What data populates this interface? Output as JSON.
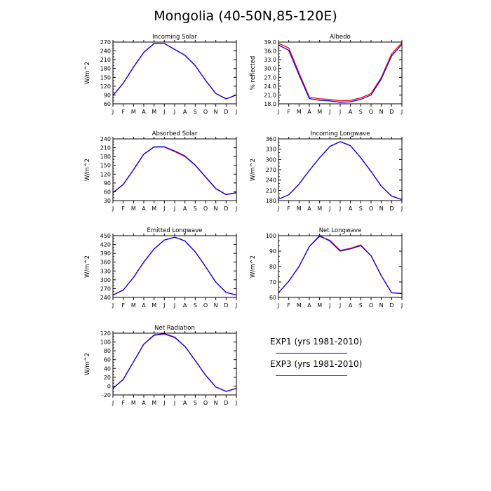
{
  "title": "Mongolia (40-50N,85-120E)",
  "colors": {
    "exp1": "#0000ff",
    "exp3": "#ff0000"
  },
  "legend": [
    {
      "label": "EXP1 (yrs 1981-2010)",
      "color": "#0000ff"
    },
    {
      "label": "EXP3 (yrs 1981-2010)",
      "color": "#ff0000"
    }
  ],
  "chart_data": [
    {
      "type": "line",
      "title": "Incoming Solar",
      "ylabel": "W/m^2",
      "categories": [
        "J",
        "F",
        "M",
        "A",
        "M",
        "J",
        "J",
        "A",
        "S",
        "O",
        "N",
        "D",
        "J"
      ],
      "ylim": [
        60,
        270
      ],
      "yticks": [
        60,
        90,
        120,
        150,
        180,
        210,
        240,
        270
      ],
      "ytick_labels": [
        "60",
        "90",
        "120",
        "150",
        "180",
        "210",
        "240",
        "270"
      ],
      "series": [
        {
          "values": [
            88,
            130,
            185,
            235,
            265,
            265,
            245,
            225,
            190,
            140,
            95,
            77,
            90
          ]
        },
        {
          "values": [
            88,
            130,
            185,
            235,
            265,
            265,
            245,
            225,
            190,
            140,
            95,
            77,
            90
          ]
        }
      ]
    },
    {
      "type": "line",
      "title": "Albedo",
      "ylabel": "% reflected",
      "categories": [
        "J",
        "F",
        "M",
        "A",
        "M",
        "J",
        "J",
        "A",
        "S",
        "O",
        "N",
        "D",
        "J"
      ],
      "ylim": [
        18,
        39
      ],
      "yticks": [
        18,
        21,
        24,
        27,
        30,
        33,
        36,
        39
      ],
      "ytick_labels": [
        "18.0",
        "21.0",
        "24.0",
        "27.0",
        "30.0",
        "33.0",
        "36.0",
        "39.0"
      ],
      "series": [
        {
          "values": [
            38.6,
            37.0,
            28.5,
            20.3,
            19.7,
            19.5,
            19.0,
            19.2,
            20.0,
            21.5,
            27.0,
            35.0,
            38.8
          ]
        },
        {
          "values": [
            38.0,
            36.2,
            27.8,
            19.8,
            19.2,
            19.0,
            18.5,
            18.7,
            19.5,
            21.0,
            26.5,
            34.3,
            38.2
          ]
        }
      ]
    },
    {
      "type": "line",
      "title": "Absorbed Solar",
      "ylabel": "W/m^2",
      "categories": [
        "J",
        "F",
        "M",
        "A",
        "M",
        "J",
        "J",
        "A",
        "S",
        "O",
        "N",
        "D",
        "J"
      ],
      "ylim": [
        30,
        240
      ],
      "yticks": [
        30,
        60,
        90,
        120,
        150,
        180,
        210,
        240
      ],
      "ytick_labels": [
        "30",
        "60",
        "90",
        "120",
        "150",
        "180",
        "210",
        "240"
      ],
      "series": [
        {
          "values": [
            57,
            85,
            135,
            188,
            212,
            212,
            197,
            180,
            150,
            110,
            70,
            50,
            57
          ]
        },
        {
          "values": [
            57,
            85,
            135,
            188,
            213,
            213,
            199,
            182,
            151,
            111,
            71,
            51,
            57
          ]
        }
      ]
    },
    {
      "type": "line",
      "title": "Incoming Longwave",
      "ylabel": "W/m^2",
      "categories": [
        "J",
        "F",
        "M",
        "A",
        "M",
        "J",
        "J",
        "A",
        "S",
        "O",
        "N",
        "D",
        "J"
      ],
      "ylim": [
        180,
        360
      ],
      "yticks": [
        180,
        210,
        240,
        270,
        300,
        330,
        360
      ],
      "ytick_labels": [
        "180",
        "210",
        "240",
        "270",
        "300",
        "330",
        "360"
      ],
      "series": [
        {
          "values": [
            184,
            197,
            228,
            268,
            305,
            338,
            352,
            340,
            305,
            265,
            222,
            193,
            183
          ]
        },
        {
          "values": [
            184,
            197,
            228,
            268,
            305,
            338,
            352,
            340,
            305,
            265,
            222,
            193,
            183
          ]
        }
      ]
    },
    {
      "type": "line",
      "title": "Emitted Longwave",
      "ylabel": "W/m^2",
      "categories": [
        "J",
        "F",
        "M",
        "A",
        "M",
        "J",
        "J",
        "A",
        "S",
        "O",
        "N",
        "D",
        "J"
      ],
      "ylim": [
        240,
        450
      ],
      "yticks": [
        240,
        270,
        300,
        330,
        360,
        390,
        420,
        450
      ],
      "ytick_labels": [
        "240",
        "270",
        "300",
        "330",
        "360",
        "390",
        "420",
        "450"
      ],
      "series": [
        {
          "values": [
            248,
            265,
            308,
            360,
            405,
            435,
            445,
            432,
            395,
            345,
            292,
            257,
            248
          ]
        },
        {
          "values": [
            248,
            265,
            308,
            360,
            405,
            435,
            445,
            432,
            395,
            345,
            292,
            257,
            248
          ]
        }
      ]
    },
    {
      "type": "line",
      "title": "Net Longwave",
      "ylabel": "W/m^2",
      "categories": [
        "J",
        "F",
        "M",
        "A",
        "M",
        "J",
        "J",
        "A",
        "S",
        "O",
        "N",
        "D",
        "J"
      ],
      "ylim": [
        60,
        100
      ],
      "yticks": [
        60,
        70,
        80,
        90,
        100
      ],
      "ytick_labels": [
        "60",
        "70",
        "80",
        "90",
        "100"
      ],
      "series": [
        {
          "values": [
            63,
            70.5,
            80,
            93,
            99.5,
            97,
            90.5,
            91.8,
            94,
            87,
            74,
            63,
            62.5
          ]
        },
        {
          "values": [
            63,
            70.5,
            80,
            93,
            100,
            96.5,
            90,
            91.5,
            93.5,
            87,
            74,
            63,
            62.5
          ]
        }
      ]
    },
    {
      "type": "line",
      "title": "Net Radiation",
      "ylabel": "W/m^2",
      "categories": [
        "J",
        "F",
        "M",
        "A",
        "M",
        "J",
        "J",
        "A",
        "S",
        "O",
        "N",
        "D",
        "J"
      ],
      "ylim": [
        -20,
        120
      ],
      "yticks": [
        -20,
        0,
        20,
        40,
        60,
        80,
        100,
        120
      ],
      "ytick_labels": [
        "-20",
        "0",
        "20",
        "40",
        "60",
        "80",
        "100",
        "120"
      ],
      "series": [
        {
          "values": [
            -5,
            15,
            55,
            95,
            115,
            118,
            110,
            90,
            58,
            25,
            -2,
            -12,
            -5
          ]
        },
        {
          "values": [
            -5,
            15,
            55,
            95,
            116,
            119,
            111,
            90,
            58,
            25,
            -2,
            -12,
            -5
          ]
        }
      ]
    }
  ]
}
